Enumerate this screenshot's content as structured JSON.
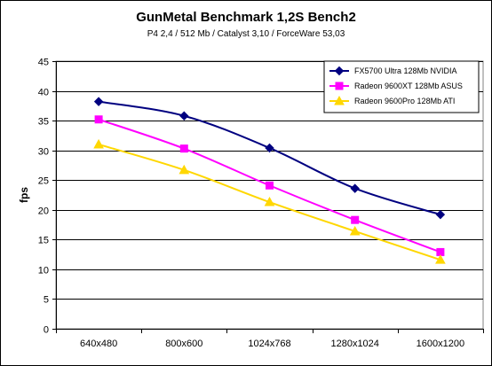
{
  "chart_data": {
    "type": "line",
    "title": "GunMetal Benchmark 1,2S Bench2",
    "subtitle": "P4 2,4 / 512 Mb / Catalyst 3,10 / ForceWare 53,03",
    "xlabel": "",
    "ylabel": "fps",
    "ylim": [
      0,
      45
    ],
    "ytick_step": 5,
    "grid": "horizontal",
    "legend_position": "top-right",
    "categories": [
      "640x480",
      "800x600",
      "1024x768",
      "1280x1024",
      "1600x1200"
    ],
    "series": [
      {
        "name": "FX5700 Ultra 128Mb NVIDIA",
        "color": "#000080",
        "marker": "diamond",
        "values": [
          38.2,
          35.8,
          30.4,
          23.6,
          19.2
        ]
      },
      {
        "name": "Radeon 9600XT 128Mb ASUS",
        "color": "#FF00FF",
        "marker": "square",
        "values": [
          35.2,
          30.3,
          24.1,
          18.3,
          12.9
        ]
      },
      {
        "name": "Radeon 9600Pro 128Mb ATI",
        "color": "#FFD700",
        "marker": "triangle",
        "values": [
          31.0,
          26.7,
          21.3,
          16.4,
          11.6
        ]
      }
    ]
  }
}
